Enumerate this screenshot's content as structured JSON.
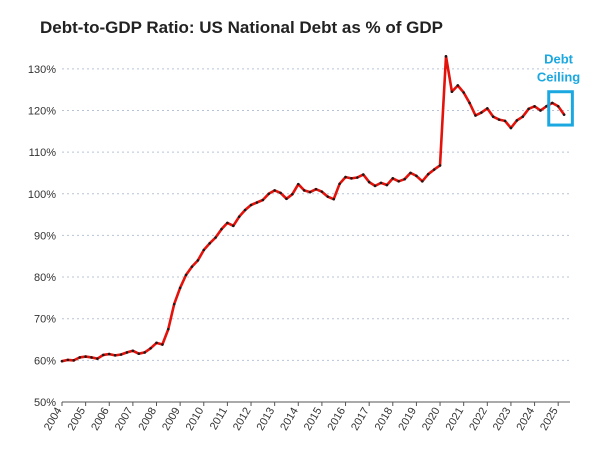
{
  "colors": {
    "line": "#e3120b",
    "marker": "#1a1a1a",
    "annotation": "#1ba8e0",
    "grid": "#b8c4d6",
    "axis": "#555555"
  },
  "chart_data": {
    "type": "line",
    "title": "Debt-to-GDP Ratio: US National Debt as % of GDP",
    "xlabel": "",
    "ylabel": "",
    "ylim": [
      50,
      135
    ],
    "xlim": [
      2004,
      2025.5
    ],
    "y_ticks": [
      50,
      60,
      70,
      80,
      90,
      100,
      110,
      120,
      130
    ],
    "y_tick_labels": [
      "50%",
      "60%",
      "70%",
      "80%",
      "90%",
      "100%",
      "110%",
      "120%",
      "130%"
    ],
    "x_ticks": [
      2004,
      2005,
      2006,
      2007,
      2008,
      2009,
      2010,
      2011,
      2012,
      2013,
      2014,
      2015,
      2016,
      2017,
      2018,
      2019,
      2020,
      2021,
      2022,
      2023,
      2024,
      2025
    ],
    "x_tick_labels": [
      "2004",
      "2005",
      "2006",
      "2007",
      "2008",
      "2009",
      "2010",
      "2011",
      "2012",
      "2013",
      "2014",
      "2015",
      "2016",
      "2017",
      "2018",
      "2019",
      "2020",
      "2021",
      "2022",
      "2023",
      "2024",
      "2025"
    ],
    "grid": "horizontal dotted",
    "legend": "none",
    "series": [
      {
        "x": [
          2004.0,
          2004.25,
          2004.5,
          2004.75,
          2005.0,
          2005.25,
          2005.5,
          2005.75,
          2006.0,
          2006.25,
          2006.5,
          2006.75,
          2007.0,
          2007.25,
          2007.5,
          2007.75,
          2008.0,
          2008.25,
          2008.5,
          2008.75,
          2009.0,
          2009.25,
          2009.5,
          2009.75,
          2010.0,
          2010.25,
          2010.5,
          2010.75,
          2011.0,
          2011.25,
          2011.5,
          2011.75,
          2012.0,
          2012.25,
          2012.5,
          2012.75,
          2013.0,
          2013.25,
          2013.5,
          2013.75,
          2014.0,
          2014.25,
          2014.5,
          2014.75,
          2015.0,
          2015.25,
          2015.5,
          2015.75,
          2016.0,
          2016.25,
          2016.5,
          2016.75,
          2017.0,
          2017.25,
          2017.5,
          2017.75,
          2018.0,
          2018.25,
          2018.5,
          2018.75,
          2019.0,
          2019.25,
          2019.5,
          2019.75,
          2020.0,
          2020.25,
          2020.5,
          2020.75,
          2021.0,
          2021.25,
          2021.5,
          2021.75,
          2022.0,
          2022.25,
          2022.5,
          2022.75,
          2023.0,
          2023.25,
          2023.5,
          2023.75,
          2024.0,
          2024.25,
          2024.5,
          2024.75,
          2025.0,
          2025.25
        ],
        "values": [
          59.8,
          60.1,
          60.0,
          60.7,
          60.9,
          60.7,
          60.4,
          61.3,
          61.5,
          61.2,
          61.4,
          61.9,
          62.3,
          61.6,
          61.9,
          62.9,
          64.2,
          63.8,
          67.5,
          73.5,
          77.4,
          80.5,
          82.5,
          84.0,
          86.5,
          88.1,
          89.5,
          91.5,
          93.0,
          92.3,
          94.5,
          96.1,
          97.3,
          97.9,
          98.5,
          100.0,
          100.8,
          100.2,
          98.8,
          99.9,
          102.3,
          100.8,
          100.4,
          101.1,
          100.5,
          99.3,
          98.7,
          102.4,
          104.0,
          103.7,
          103.9,
          104.6,
          102.8,
          101.9,
          102.6,
          102.1,
          103.7,
          103.0,
          103.5,
          105.0,
          104.3,
          103.0,
          104.7,
          105.8,
          106.8,
          133.0,
          124.5,
          126.0,
          124.3,
          121.8,
          118.8,
          119.5,
          120.5,
          118.5,
          117.8,
          117.5,
          115.8,
          117.6,
          118.5,
          120.4,
          121.0,
          120.0,
          121.0,
          121.8,
          121.0,
          119.0
        ]
      }
    ],
    "annotation": {
      "text_line1": "Debt",
      "text_line2": "Ceiling",
      "x_range": [
        2024.6,
        2025.6
      ],
      "y_range": [
        116.5,
        124.5
      ]
    }
  }
}
